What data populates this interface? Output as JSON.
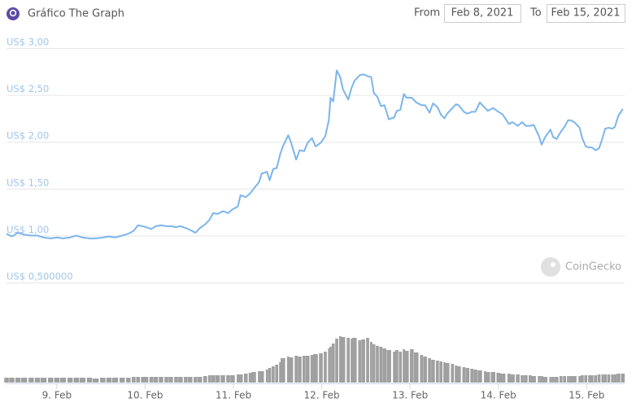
{
  "header": {
    "from_label": "From",
    "from_date": "Feb 8, 2021",
    "to_label": "To",
    "to_date": "Feb 15, 2021"
  },
  "watermark": "CoinGecko",
  "chart_data": {
    "type": "line",
    "title": "Gráfico The Graph",
    "x": [
      8.43,
      8.49,
      8.56,
      8.63,
      8.71,
      8.78,
      8.85,
      8.93,
      9.0,
      9.07,
      9.15,
      9.22,
      9.29,
      9.37,
      9.44,
      9.52,
      9.59,
      9.66,
      9.74,
      9.81,
      9.87,
      9.92,
      9.97,
      10.01,
      10.07,
      10.12,
      10.18,
      10.24,
      10.29,
      10.35,
      10.4,
      10.46,
      10.51,
      10.57,
      10.62,
      10.68,
      10.73,
      10.77,
      10.82,
      10.88,
      10.94,
      10.99,
      11.05,
      11.08,
      11.14,
      11.19,
      11.23,
      11.29,
      11.32,
      11.38,
      11.41,
      11.45,
      11.49,
      11.53,
      11.56,
      11.62,
      11.65,
      11.71,
      11.75,
      11.8,
      11.84,
      11.89,
      11.93,
      11.99,
      12.04,
      12.08,
      12.1,
      12.13,
      12.17,
      12.21,
      12.24,
      12.3,
      12.34,
      12.37,
      12.43,
      12.47,
      12.52,
      12.56,
      12.59,
      12.63,
      12.67,
      12.71,
      12.76,
      12.82,
      12.85,
      12.89,
      12.93,
      12.96,
      13.02,
      13.07,
      13.13,
      13.17,
      13.22,
      13.26,
      13.31,
      13.35,
      13.39,
      13.42,
      13.48,
      13.52,
      13.55,
      13.61,
      13.65,
      13.7,
      13.74,
      13.79,
      13.85,
      13.88,
      13.94,
      14.0,
      14.05,
      14.12,
      14.16,
      14.22,
      14.27,
      14.31,
      14.36,
      14.4,
      14.46,
      14.49,
      14.53,
      14.59,
      14.62,
      14.66,
      14.71,
      14.75,
      14.79,
      14.82,
      14.86,
      14.92,
      14.95,
      14.99,
      15.03,
      15.06,
      15.1,
      15.14,
      15.18,
      15.21,
      15.25,
      15.29,
      15.32,
      15.36,
      15.41
    ],
    "series": [
      {
        "color": "#7cb5ec",
        "values": [
          1.02,
          0.99,
          1.03,
          1.01,
          1.0,
          1.0,
          0.98,
          0.97,
          0.98,
          0.97,
          0.98,
          1.0,
          0.98,
          0.97,
          0.97,
          0.98,
          0.99,
          0.98,
          1.0,
          1.02,
          1.05,
          1.11,
          1.1,
          1.09,
          1.07,
          1.1,
          1.11,
          1.1,
          1.1,
          1.09,
          1.1,
          1.08,
          1.06,
          1.03,
          1.08,
          1.12,
          1.17,
          1.24,
          1.23,
          1.26,
          1.24,
          1.28,
          1.31,
          1.43,
          1.41,
          1.45,
          1.5,
          1.57,
          1.66,
          1.68,
          1.59,
          1.71,
          1.72,
          1.87,
          1.95,
          2.07,
          2.0,
          1.81,
          1.91,
          1.9,
          1.99,
          2.04,
          1.95,
          1.99,
          2.06,
          2.23,
          2.47,
          2.43,
          2.76,
          2.69,
          2.56,
          2.45,
          2.58,
          2.65,
          2.71,
          2.72,
          2.7,
          2.69,
          2.52,
          2.48,
          2.38,
          2.39,
          2.24,
          2.26,
          2.33,
          2.34,
          2.51,
          2.47,
          2.47,
          2.42,
          2.39,
          2.39,
          2.31,
          2.41,
          2.37,
          2.29,
          2.25,
          2.3,
          2.36,
          2.4,
          2.39,
          2.32,
          2.3,
          2.32,
          2.32,
          2.42,
          2.36,
          2.33,
          2.36,
          2.32,
          2.29,
          2.19,
          2.21,
          2.17,
          2.21,
          2.17,
          2.17,
          2.18,
          2.06,
          1.97,
          2.05,
          2.13,
          2.05,
          2.03,
          2.11,
          2.16,
          2.23,
          2.23,
          2.21,
          2.15,
          2.04,
          1.95,
          1.94,
          1.94,
          1.91,
          1.93,
          2.04,
          2.14,
          2.15,
          2.14,
          2.16,
          2.28,
          2.35
        ]
      },
      {
        "type": "bar",
        "axis": "y2",
        "color": "#a0a0a0",
        "values": [
          6,
          6,
          6,
          6,
          6,
          6,
          6,
          6,
          6,
          6,
          6,
          6,
          6,
          6,
          5,
          6,
          6,
          6,
          6,
          6,
          7,
          7,
          7,
          7,
          7,
          7,
          7,
          7,
          7,
          7,
          7,
          7,
          7,
          7,
          7,
          8,
          9,
          9,
          9,
          9,
          9,
          9,
          10,
          10,
          11,
          12,
          13,
          14,
          14,
          16,
          18,
          20,
          22,
          25,
          30,
          32,
          31,
          33,
          32,
          33,
          33,
          34,
          35,
          36,
          38,
          42,
          44,
          48,
          54,
          57,
          56,
          55,
          54,
          55,
          52,
          53,
          55,
          50,
          47,
          45,
          44,
          42,
          40,
          38,
          40,
          38,
          41,
          39,
          41,
          37,
          34,
          32,
          30,
          28,
          27,
          26,
          25,
          24,
          23,
          21,
          20,
          19,
          18,
          17,
          16,
          15,
          14,
          13,
          13,
          12,
          11,
          11,
          10,
          10,
          9,
          9,
          9,
          8,
          8,
          8,
          7,
          7,
          7,
          7,
          8,
          8,
          8,
          8,
          8,
          8,
          9,
          9,
          9,
          9,
          9,
          10,
          10,
          10,
          10,
          10,
          10,
          11,
          11
        ]
      }
    ],
    "xlim": [
      8.43,
      15.43
    ],
    "xticks": [
      {
        "value": 9,
        "label": "9. Feb"
      },
      {
        "value": 10,
        "label": "10. Feb"
      },
      {
        "value": 11,
        "label": "11. Feb"
      },
      {
        "value": 12,
        "label": "12. Feb"
      },
      {
        "value": 13,
        "label": "13. Feb"
      },
      {
        "value": 14,
        "label": "14. Feb"
      },
      {
        "value": 15,
        "label": "15. Feb"
      }
    ],
    "ylim": [
      0.5,
      3.0
    ],
    "yticks": [
      {
        "value": 3.0,
        "label": "US$ 3,00"
      },
      {
        "value": 2.5,
        "label": "US$ 2,50"
      },
      {
        "value": 2.0,
        "label": "US$ 2,00"
      },
      {
        "value": 1.5,
        "label": "US$ 1,50"
      },
      {
        "value": 1.0,
        "label": "US$ 1,00"
      },
      {
        "value": 0.5,
        "label": "US$ 0,500000"
      }
    ],
    "y2lim": [
      0,
      60
    ],
    "grid": true
  }
}
